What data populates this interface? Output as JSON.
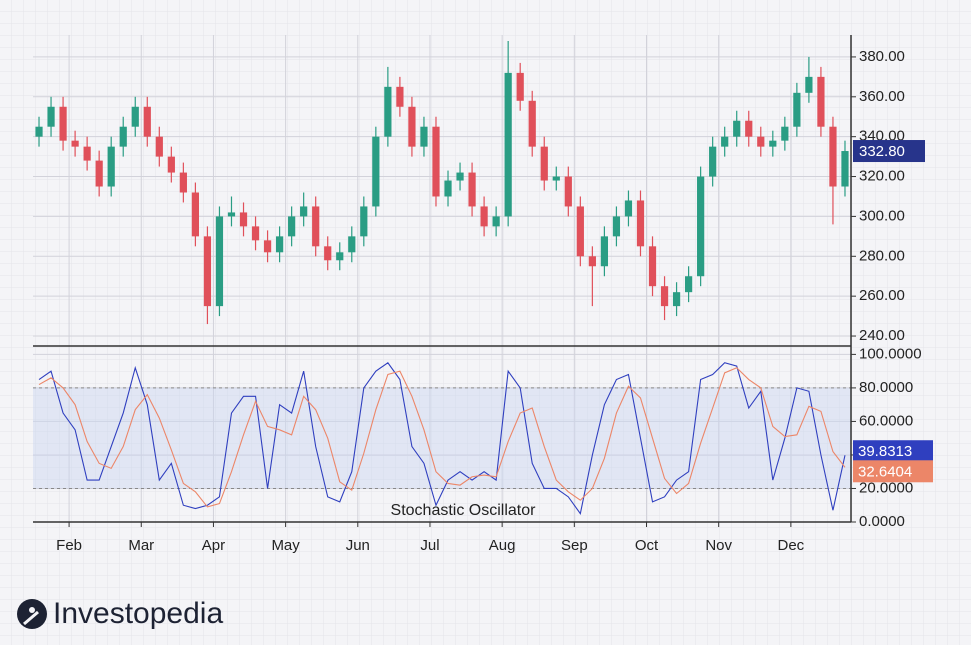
{
  "brand": "Investopedia",
  "chart_data": [
    {
      "type": "candlestick",
      "up_color": "#2a9d84",
      "down_color": "#e0505a",
      "open": [
        340,
        345,
        355,
        338,
        335,
        328,
        315,
        335,
        345,
        355,
        340,
        330,
        322,
        312,
        290,
        255,
        300,
        302,
        295,
        288,
        282,
        290,
        300,
        305,
        285,
        278,
        282,
        290,
        305,
        340,
        365,
        355,
        335,
        345,
        310,
        318,
        322,
        305,
        295,
        300,
        372,
        358,
        335,
        318,
        320,
        305,
        280,
        275,
        290,
        300,
        308,
        285,
        265,
        255,
        262,
        270,
        320,
        335,
        340,
        348,
        340,
        335,
        338,
        345,
        362,
        370,
        345,
        315
      ],
      "high": [
        350,
        360,
        360,
        343,
        340,
        333,
        340,
        350,
        360,
        360,
        345,
        335,
        327,
        317,
        295,
        305,
        310,
        307,
        300,
        293,
        295,
        305,
        312,
        310,
        290,
        287,
        295,
        310,
        345,
        375,
        370,
        360,
        350,
        350,
        323,
        327,
        327,
        310,
        305,
        388,
        377,
        363,
        340,
        325,
        325,
        310,
        285,
        295,
        305,
        313,
        313,
        290,
        270,
        267,
        275,
        325,
        340,
        345,
        353,
        353,
        345,
        343,
        350,
        367,
        380,
        375,
        350,
        338
      ],
      "low": [
        335,
        340,
        333,
        330,
        323,
        310,
        310,
        330,
        340,
        335,
        325,
        317,
        307,
        285,
        246,
        250,
        295,
        290,
        283,
        277,
        277,
        285,
        295,
        280,
        273,
        273,
        277,
        285,
        300,
        335,
        350,
        330,
        330,
        305,
        305,
        313,
        300,
        290,
        290,
        295,
        353,
        330,
        313,
        313,
        300,
        275,
        255,
        270,
        285,
        295,
        280,
        260,
        248,
        250,
        257,
        265,
        315,
        330,
        335,
        335,
        330,
        330,
        333,
        340,
        357,
        340,
        296,
        310
      ],
      "close": [
        345,
        355,
        338,
        335,
        328,
        315,
        335,
        345,
        355,
        340,
        330,
        322,
        312,
        290,
        255,
        300,
        302,
        295,
        288,
        282,
        290,
        300,
        305,
        285,
        278,
        282,
        290,
        305,
        340,
        365,
        355,
        335,
        345,
        310,
        318,
        322,
        305,
        295,
        300,
        372,
        358,
        335,
        318,
        320,
        305,
        280,
        275,
        290,
        300,
        308,
        285,
        265,
        255,
        262,
        270,
        320,
        335,
        340,
        348,
        340,
        335,
        338,
        345,
        362,
        370,
        345,
        315,
        332.8
      ],
      "last_label": "332.80",
      "last_color": "#27348b",
      "ylim": [
        235,
        391
      ],
      "yticks": [
        {
          "value": 240,
          "label": "240.00"
        },
        {
          "value": 260,
          "label": "260.00"
        },
        {
          "value": 280,
          "label": "280.00"
        },
        {
          "value": 300,
          "label": "300.00"
        },
        {
          "value": 320,
          "label": "320.00"
        },
        {
          "value": 340,
          "label": "340.00"
        },
        {
          "value": 360,
          "label": "360.00"
        },
        {
          "value": 380,
          "label": "380.00"
        }
      ],
      "grid": true
    },
    {
      "type": "line",
      "annotation": "Stochastic Oscillator",
      "categories": [
        null,
        null,
        null,
        "Feb",
        null,
        null,
        null,
        null,
        null,
        "Mar",
        null,
        null,
        null,
        null,
        null,
        "Apr",
        null,
        null,
        null,
        null,
        null,
        "May",
        null,
        null,
        null,
        null,
        null,
        "Jun",
        null,
        null,
        null,
        null,
        null,
        "Jul",
        null,
        null,
        null,
        null,
        null,
        "Aug",
        null,
        null,
        null,
        null,
        null,
        "Sep",
        null,
        null,
        null,
        null,
        null,
        "Oct",
        null,
        null,
        null,
        null,
        null,
        "Nov",
        null,
        null,
        null,
        null,
        null,
        "Dec",
        null,
        null,
        null,
        null
      ],
      "series": [
        {
          "color": "#2f3fbf",
          "last_label": "39.8313",
          "values": [
            85,
            90,
            65,
            55,
            25,
            25,
            45,
            65,
            92,
            70,
            25,
            35,
            10,
            8,
            10,
            15,
            65,
            75,
            75,
            20,
            70,
            65,
            90,
            45,
            15,
            12,
            30,
            80,
            90,
            95,
            85,
            45,
            35,
            10,
            25,
            30,
            25,
            30,
            25,
            90,
            80,
            35,
            20,
            20,
            15,
            5,
            40,
            70,
            85,
            88,
            50,
            12,
            15,
            25,
            30,
            85,
            88,
            95,
            93,
            68,
            78,
            25,
            50,
            80,
            78,
            40,
            7,
            39.8313
          ]
        },
        {
          "color": "#ec8668",
          "last_label": "32.6404",
          "values": [
            82,
            86,
            80,
            70,
            48,
            35,
            32,
            45,
            67,
            76,
            62,
            43,
            23,
            18,
            9,
            11,
            30,
            52,
            72,
            57,
            55,
            52,
            75,
            67,
            50,
            24,
            19,
            41,
            67,
            88,
            90,
            75,
            55,
            30,
            23,
            22,
            27,
            28,
            27,
            48,
            65,
            68,
            45,
            25,
            18,
            13,
            20,
            38,
            65,
            81,
            74,
            50,
            26,
            17,
            23,
            47,
            68,
            89,
            92,
            85,
            80,
            57,
            51,
            52,
            69,
            66,
            42,
            32.6404
          ]
        }
      ],
      "band": [
        20,
        80
      ],
      "ylim": [
        0,
        105
      ],
      "yticks": [
        {
          "value": 0,
          "label": "0.0000"
        },
        {
          "value": 20,
          "label": "20.0000"
        },
        {
          "value": 40,
          "label": "40.0000"
        },
        {
          "value": 60,
          "label": "60.0000"
        },
        {
          "value": 80,
          "label": "80.0000"
        },
        {
          "value": 100,
          "label": "100.0000"
        }
      ],
      "grid": true
    }
  ]
}
